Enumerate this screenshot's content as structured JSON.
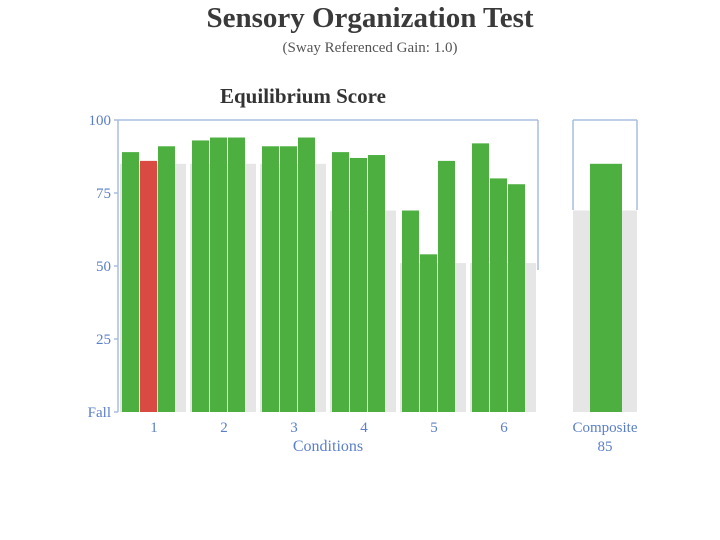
{
  "header": {
    "title": "Sensory Organization Test",
    "subtitle": "(Sway Referenced Gain: 1.0)"
  },
  "chart_data": {
    "type": "bar",
    "title": "Equilibrium Score",
    "xlabel": "Conditions",
    "ylabel": "",
    "ylim": [
      0,
      100
    ],
    "yticks": [
      {
        "value": 0,
        "label": "Fall"
      },
      {
        "value": 25,
        "label": "25"
      },
      {
        "value": 50,
        "label": "50"
      },
      {
        "value": 75,
        "label": "75"
      },
      {
        "value": 100,
        "label": "100"
      }
    ],
    "grid": false,
    "colors": {
      "normal": "#4caf3f",
      "flagged": "#d94a43",
      "band": "#e6e6e6",
      "axis": "#a9bde0"
    },
    "groups": [
      {
        "label": "1",
        "trials": [
          89,
          86,
          91
        ],
        "flagged": [
          false,
          true,
          false
        ],
        "normal_band": 85
      },
      {
        "label": "2",
        "trials": [
          93,
          94,
          94
        ],
        "flagged": [
          false,
          false,
          false
        ],
        "normal_band": 85
      },
      {
        "label": "3",
        "trials": [
          91,
          91,
          94
        ],
        "flagged": [
          false,
          false,
          false
        ],
        "normal_band": 85
      },
      {
        "label": "4",
        "trials": [
          89,
          87,
          88
        ],
        "flagged": [
          false,
          false,
          false
        ],
        "normal_band": 69
      },
      {
        "label": "5",
        "trials": [
          69,
          54,
          86
        ],
        "flagged": [
          false,
          false,
          false
        ],
        "normal_band": 51
      },
      {
        "label": "6",
        "trials": [
          92,
          80,
          78
        ],
        "flagged": [
          false,
          false,
          false
        ],
        "normal_band": 51
      }
    ],
    "composite": {
      "label": "Composite",
      "value": 85,
      "value_label": "85",
      "normal_band": 69
    }
  }
}
